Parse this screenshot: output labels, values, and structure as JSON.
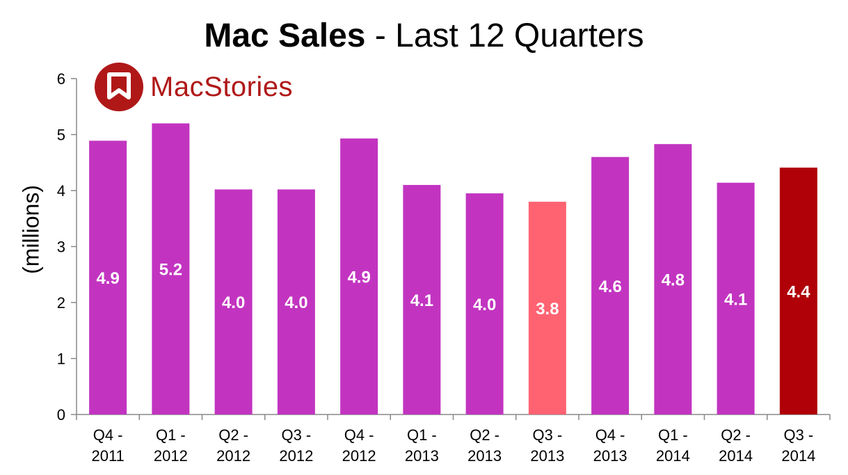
{
  "chart_data": {
    "type": "bar",
    "title_bold": "Mac Sales",
    "title_rest": " - Last 12 Quarters",
    "xlabel": "",
    "ylabel": "(millions)",
    "ylim": [
      0,
      6
    ],
    "yticks": [
      "0",
      "1",
      "2",
      "3",
      "4",
      "5",
      "6"
    ],
    "grid": false,
    "categories": [
      [
        "Q4 -",
        "2011"
      ],
      [
        "Q1 -",
        "2012"
      ],
      [
        "Q2 -",
        "2012"
      ],
      [
        "Q3 -",
        "2012"
      ],
      [
        "Q4 -",
        "2012"
      ],
      [
        "Q1 -",
        "2013"
      ],
      [
        "Q2 -",
        "2013"
      ],
      [
        "Q3 -",
        "2013"
      ],
      [
        "Q4 -",
        "2013"
      ],
      [
        "Q1 -",
        "2014"
      ],
      [
        "Q2 -",
        "2014"
      ],
      [
        "Q3 -",
        "2014"
      ]
    ],
    "values": [
      4.89,
      5.2,
      4.02,
      4.02,
      4.93,
      4.1,
      3.95,
      3.8,
      4.6,
      4.83,
      4.14,
      4.41
    ],
    "data_labels": [
      "4.9",
      "5.2",
      "4.0",
      "4.0",
      "4.9",
      "4.1",
      "4.0",
      "3.8",
      "4.6",
      "4.8",
      "4.1",
      "4.4"
    ],
    "colors": [
      "#c234c0",
      "#c234c0",
      "#c234c0",
      "#c234c0",
      "#c234c0",
      "#c234c0",
      "#c234c0",
      "#ff6372",
      "#c234c0",
      "#c234c0",
      "#c234c0",
      "#b00008"
    ]
  },
  "logo": {
    "text": "MacStories",
    "color": "#b01818"
  }
}
